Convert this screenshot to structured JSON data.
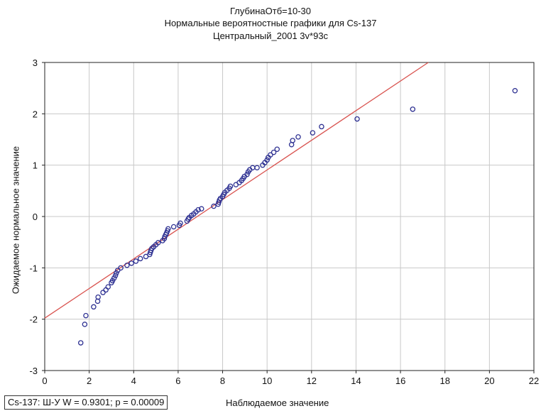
{
  "chart_data": {
    "type": "scatter",
    "title": [
      "ГлубинаОтб=10-30",
      "Нормальные вероятностные графики для Cs-137",
      "Центральный_2001 3v*93c"
    ],
    "xlabel": "Наблюдаемое значение",
    "ylabel": "Ожидаемое нормальное значение",
    "xlim": [
      0,
      22
    ],
    "ylim": [
      -3,
      3
    ],
    "xticks": [
      0,
      2,
      4,
      6,
      8,
      10,
      12,
      14,
      16,
      18,
      20,
      22
    ],
    "yticks": [
      -3,
      -2,
      -1,
      0,
      1,
      2,
      3
    ],
    "grid": true,
    "stat_label": "Cs-137:  Ш-У W = 0.9301; p = 0.00009",
    "colors": {
      "points": "#2e3192",
      "line": "#d9534f",
      "grid": "#c8c8c8"
    },
    "fit_line": {
      "x": [
        0,
        17.25
      ],
      "y": [
        -1.98,
        3
      ]
    },
    "points": [
      [
        1.62,
        -2.46
      ],
      [
        1.8,
        -2.1
      ],
      [
        1.85,
        -1.93
      ],
      [
        2.2,
        -1.76
      ],
      [
        2.38,
        -1.65
      ],
      [
        2.4,
        -1.57
      ],
      [
        2.62,
        -1.48
      ],
      [
        2.75,
        -1.43
      ],
      [
        2.85,
        -1.37
      ],
      [
        3.0,
        -1.29
      ],
      [
        3.05,
        -1.25
      ],
      [
        3.12,
        -1.2
      ],
      [
        3.18,
        -1.15
      ],
      [
        3.22,
        -1.1
      ],
      [
        3.28,
        -1.05
      ],
      [
        3.42,
        -1.0
      ],
      [
        3.7,
        -0.95
      ],
      [
        3.9,
        -0.91
      ],
      [
        4.1,
        -0.87
      ],
      [
        4.3,
        -0.82
      ],
      [
        4.55,
        -0.78
      ],
      [
        4.72,
        -0.74
      ],
      [
        4.75,
        -0.7
      ],
      [
        4.78,
        -0.66
      ],
      [
        4.82,
        -0.62
      ],
      [
        4.9,
        -0.59
      ],
      [
        5.0,
        -0.55
      ],
      [
        5.1,
        -0.51
      ],
      [
        5.3,
        -0.47
      ],
      [
        5.38,
        -0.43
      ],
      [
        5.4,
        -0.39
      ],
      [
        5.45,
        -0.35
      ],
      [
        5.48,
        -0.32
      ],
      [
        5.52,
        -0.28
      ],
      [
        5.55,
        -0.24
      ],
      [
        5.8,
        -0.2
      ],
      [
        6.05,
        -0.17
      ],
      [
        6.1,
        -0.13
      ],
      [
        6.4,
        -0.09
      ],
      [
        6.45,
        -0.05
      ],
      [
        6.5,
        -0.02
      ],
      [
        6.6,
        0.02
      ],
      [
        6.7,
        0.05
      ],
      [
        6.8,
        0.09
      ],
      [
        6.9,
        0.13
      ],
      [
        7.05,
        0.15
      ],
      [
        7.6,
        0.2
      ],
      [
        7.8,
        0.24
      ],
      [
        7.83,
        0.28
      ],
      [
        7.86,
        0.32
      ],
      [
        7.9,
        0.35
      ],
      [
        8.0,
        0.39
      ],
      [
        8.05,
        0.43
      ],
      [
        8.1,
        0.47
      ],
      [
        8.2,
        0.51
      ],
      [
        8.3,
        0.55
      ],
      [
        8.35,
        0.59
      ],
      [
        8.6,
        0.62
      ],
      [
        8.75,
        0.66
      ],
      [
        8.85,
        0.7
      ],
      [
        8.92,
        0.74
      ],
      [
        8.98,
        0.78
      ],
      [
        9.1,
        0.82
      ],
      [
        9.15,
        0.87
      ],
      [
        9.22,
        0.91
      ],
      [
        9.35,
        0.95
      ],
      [
        9.55,
        0.95
      ],
      [
        9.8,
        1.0
      ],
      [
        9.9,
        1.05
      ],
      [
        10.0,
        1.1
      ],
      [
        10.05,
        1.15
      ],
      [
        10.15,
        1.2
      ],
      [
        10.3,
        1.25
      ],
      [
        10.45,
        1.31
      ],
      [
        11.1,
        1.4
      ],
      [
        11.15,
        1.48
      ],
      [
        11.4,
        1.55
      ],
      [
        12.05,
        1.63
      ],
      [
        12.45,
        1.75
      ],
      [
        14.05,
        1.9
      ],
      [
        16.55,
        2.09
      ],
      [
        21.15,
        2.45
      ]
    ]
  }
}
